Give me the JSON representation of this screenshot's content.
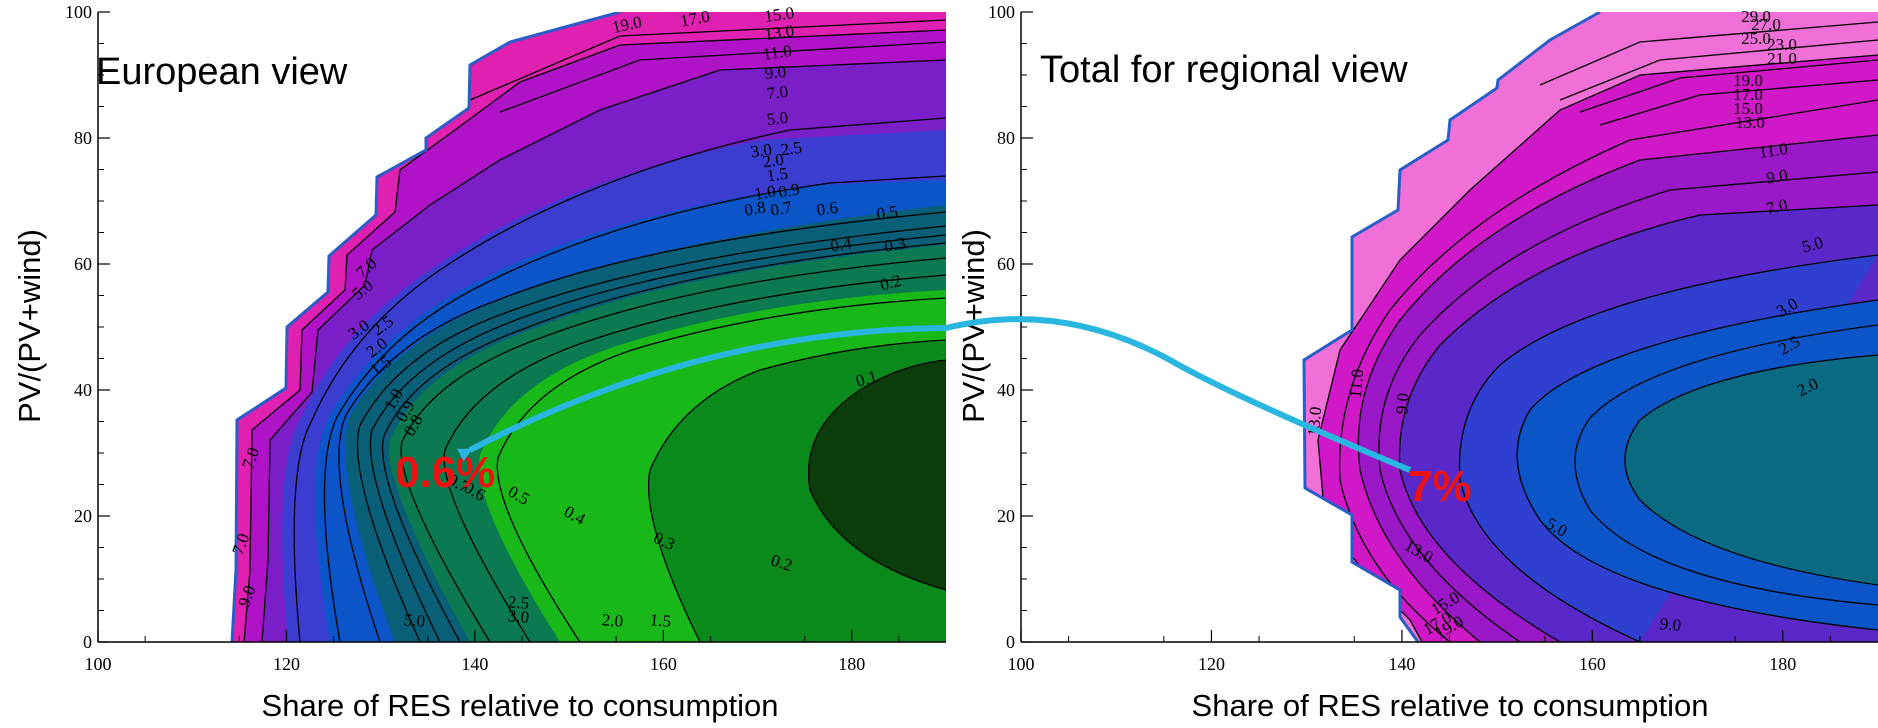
{
  "chart_data": [
    {
      "type": "contour",
      "title": "European view",
      "xlabel": "Share of RES relative to consumption",
      "ylabel": "PV/(PV+wind)",
      "xlim": [
        100,
        190
      ],
      "ylim": [
        0,
        100
      ],
      "x_ticks": [
        "100",
        "120",
        "140",
        "160",
        "180"
      ],
      "y_ticks": [
        "0",
        "20",
        "40",
        "60",
        "80",
        "100"
      ],
      "color_scale": [
        "#0b3d0b",
        "#0a8a1a",
        "#18b818",
        "#0b7a50",
        "#0a5f78",
        "#0b55c8",
        "#3b3cd0",
        "#7a1ec8",
        "#b012c8",
        "#e020b0"
      ],
      "contour_levels": [
        0.1,
        0.2,
        0.3,
        0.4,
        0.5,
        0.6,
        0.7,
        0.8,
        0.9,
        1.0,
        1.5,
        2.0,
        2.5,
        3.0,
        5.0,
        7.0,
        9.0,
        11.0,
        13.0,
        15.0,
        17.0,
        19.0
      ],
      "contour_labels": [
        "19.0",
        "17.0",
        "15.0",
        "13.0",
        "11.0",
        "9.0",
        "7.0",
        "5.0",
        "3.0",
        "2.5",
        "2.0",
        "1.5",
        "1.0",
        "0.9",
        "0.8",
        "0.7",
        "0.6",
        "0.5",
        "0.4",
        "0.3",
        "0.2",
        "0.1",
        "7.0",
        "5.0",
        "3.0",
        "2.5",
        "2.0",
        "1.5",
        "1.0",
        "0.9",
        "0.8",
        "0.7",
        "0.6",
        "0.5",
        "0.4",
        "0.3",
        "0.2",
        "7.0",
        "7.0",
        "9.0",
        "5.0",
        "3.0",
        "2.5",
        "2.0",
        "1.5"
      ],
      "annotation": {
        "text": "0.6%",
        "x": 138,
        "y": 28
      }
    },
    {
      "type": "contour",
      "title": "Total for regional view",
      "xlabel": "Share of RES relative to consumption",
      "ylabel": "PV/(PV+wind)",
      "xlim": [
        100,
        190
      ],
      "ylim": [
        0,
        100
      ],
      "x_ticks": [
        "100",
        "120",
        "140",
        "160",
        "180"
      ],
      "y_ticks": [
        "0",
        "20",
        "40",
        "60",
        "80",
        "100"
      ],
      "color_scale": [
        "#0a6a82",
        "#0b55c8",
        "#2f3fd0",
        "#5a28c8",
        "#9a18c8",
        "#d018c8",
        "#f070d8"
      ],
      "contour_levels": [
        2.0,
        2.5,
        3.0,
        5.0,
        7.0,
        9.0,
        11.0,
        13.0,
        15.0,
        17.0,
        19.0,
        21.0,
        23.0,
        25.0,
        27.0,
        29.0
      ],
      "contour_labels": [
        "29.0",
        "27.0",
        "25.0",
        "23.0",
        "21.0",
        "19.0",
        "17.0",
        "15.0",
        "13.0",
        "11.0",
        "9.0",
        "7.0",
        "5.0",
        "3.0",
        "2.5",
        "2.0",
        "11.0",
        "9.0",
        "13.0",
        "5.0",
        "13.0",
        "15.0",
        "17.0",
        "19.0",
        "9.0"
      ],
      "annotation": {
        "text": "7%",
        "x": 140,
        "y": 27
      }
    }
  ],
  "arrow": {
    "from": "Total for regional view",
    "to": "European view",
    "color": "#29b6e0"
  }
}
